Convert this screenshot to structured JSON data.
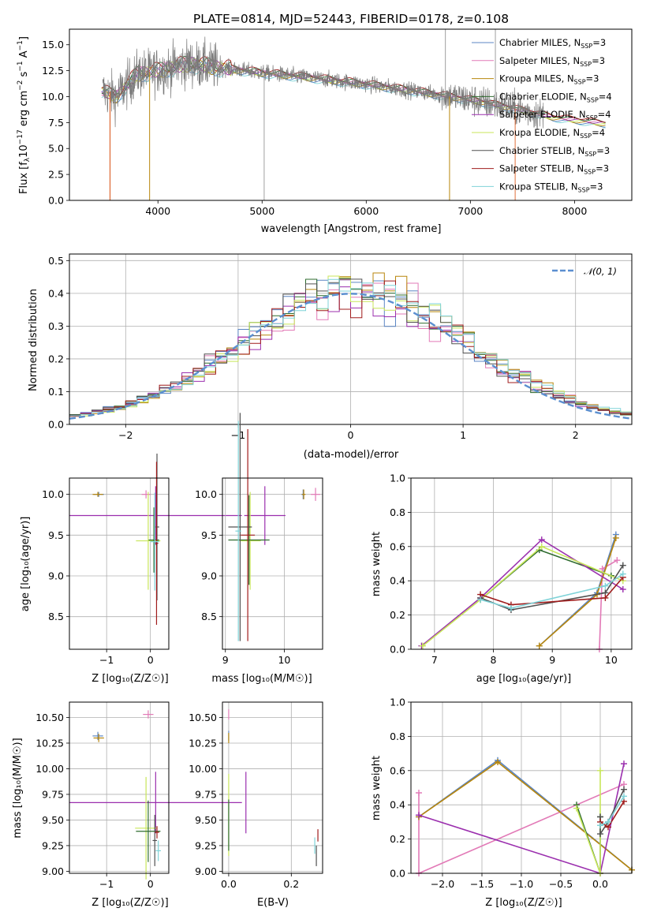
{
  "colors": [
    "#5b86c4",
    "#e27ab7",
    "#b8860b",
    "#2e6b2e",
    "#9b2fae",
    "#c8e65a",
    "#505050",
    "#a01c1c",
    "#7fd3d8"
  ],
  "chart_data": [
    {
      "id": "spectrum",
      "type": "line",
      "title": "PLATE=0814, MJD=52443, FIBERID=0178, z=0.108",
      "xlabel": "wavelength [Angstrom, rest frame]",
      "ylabel": "Flux [f_λ10^{-17} erg cm^{-2} s^{-1} A^{-1}]",
      "xlim": [
        3150,
        8550
      ],
      "ylim": [
        0,
        16.5
      ],
      "xticks": [
        "4000",
        "5000",
        "6000",
        "7000",
        "8000"
      ],
      "yticks": [
        "0.0",
        "2.5",
        "5.0",
        "7.5",
        "10.0",
        "12.5",
        "15.0"
      ],
      "grid": false,
      "legend_position": "top-right",
      "legend": [
        {
          "main": "Chabrier MILES, N",
          "sub": "SSP",
          "tail": "=3"
        },
        {
          "main": "Salpeter MILES, N",
          "sub": "SSP",
          "tail": "=3"
        },
        {
          "main": "Kroupa MILES, N",
          "sub": "SSP",
          "tail": "=3"
        },
        {
          "main": "Chabrier ELODIE, N",
          "sub": "SSP",
          "tail": "=4"
        },
        {
          "main": "Salpeter ELODIE, N",
          "sub": "SSP",
          "tail": "=4"
        },
        {
          "main": "Kroupa ELODIE, N",
          "sub": "SSP",
          "tail": "=4"
        },
        {
          "main": "Chabrier STELIB, N",
          "sub": "SSP",
          "tail": "=3"
        },
        {
          "main": "Salpeter STELIB, N",
          "sub": "SSP",
          "tail": "=3"
        },
        {
          "main": "Kroupa STELIB, N",
          "sub": "SSP",
          "tail": "=3"
        }
      ],
      "continuum": {
        "x": [
          3450,
          3600,
          3800,
          4000,
          4300,
          4600,
          5000,
          5500,
          6000,
          6500,
          7000,
          7400,
          7800,
          8300
        ],
        "y": [
          10.6,
          10.0,
          12.2,
          12.5,
          13.2,
          12.8,
          12.3,
          11.8,
          11.2,
          10.5,
          9.7,
          8.9,
          8.0,
          7.4
        ]
      },
      "spikes": [
        {
          "x": 3920,
          "y": 0,
          "color": "#b8860b"
        },
        {
          "x": 5020,
          "y": 0,
          "color": "#a0a0a0"
        },
        {
          "x": 6800,
          "y": 0,
          "color": "#b8860b"
        },
        {
          "x": 7430,
          "y": 0,
          "color": "#e06f3c"
        },
        {
          "x": 6760,
          "y": 16.5,
          "color": "#a0a0a0"
        },
        {
          "x": 7240,
          "y": 16.5,
          "color": "#a0a0a0"
        }
      ],
      "drop_edge": {
        "x": 3540,
        "y_top": 10.5,
        "color": "#e06f3c"
      }
    },
    {
      "id": "residuals",
      "type": "histogram",
      "xlabel": "(data-model)/error",
      "ylabel": "Normed distribution",
      "xlim": [
        -2.5,
        2.5
      ],
      "ylim": [
        0,
        0.52
      ],
      "xticks": [
        "−2",
        "−1",
        "0",
        "1",
        "2"
      ],
      "yticks": [
        "0.0",
        "0.1",
        "0.2",
        "0.3",
        "0.4",
        "0.5"
      ],
      "grid": true,
      "legend_position": "top-right",
      "gaussian_label": "𝒩(0, 1)",
      "gaussian_color": "#5b8fd0",
      "bin_width": 0.1
    },
    {
      "id": "age_vs_Z",
      "type": "errorbar",
      "xlabel": "Z [log₁₀(Z/Z☉)]",
      "ylabel": "age  [log₁₀(age/yr)]",
      "xlim": [
        -1.85,
        0.42
      ],
      "ylim": [
        8.1,
        10.2
      ],
      "xticks": [
        "−1",
        "0"
      ],
      "yticks": [
        "8.5",
        "9.0",
        "9.5",
        "10.0"
      ],
      "grid": true,
      "points": [
        {
          "x": -1.18,
          "y": 10.0,
          "xerr": 0.12,
          "yerr": 0.03,
          "c": 0
        },
        {
          "x": -1.2,
          "y": 10.0,
          "xerr": 0.12,
          "yerr": 0.03,
          "c": 2
        },
        {
          "x": -0.1,
          "y": 10.0,
          "xerr": 0.1,
          "yerr": 0.05,
          "c": 1
        },
        {
          "x": 0.12,
          "y": 9.74,
          "xerr": 1.97,
          "yerr": 0.36,
          "c": 4
        },
        {
          "x": -0.05,
          "y": 9.43,
          "xerr": 0.28,
          "yerr": 0.6,
          "c": 5
        },
        {
          "x": 0.08,
          "y": 9.44,
          "xerr": 0.12,
          "yerr": 0.4,
          "c": 3
        },
        {
          "x": 0.15,
          "y": 9.6,
          "xerr": 0.05,
          "yerr": 0.9,
          "c": 6
        },
        {
          "x": 0.14,
          "y": 9.4,
          "xerr": 0.04,
          "yerr": 1.0,
          "c": 7
        },
        {
          "x": 0.1,
          "y": 9.42,
          "xerr": 0.1,
          "yerr": 0.6,
          "c": 8
        }
      ]
    },
    {
      "id": "age_vs_mass",
      "type": "errorbar",
      "xlabel": "mass [log₁₀(M/M☉)]",
      "ylabel": "",
      "xlim": [
        8.95,
        10.65
      ],
      "ylim": [
        8.1,
        10.2
      ],
      "xticks": [
        "9",
        "10"
      ],
      "yticks": [
        "8.5",
        "9.0",
        "9.5",
        "10.0"
      ],
      "grid": true,
      "points": [
        {
          "x": 10.32,
          "y": 10.0,
          "xerr": 0.03,
          "yerr": 0.06,
          "c": 0
        },
        {
          "x": 10.33,
          "y": 10.0,
          "xerr": 0.03,
          "yerr": 0.06,
          "c": 2
        },
        {
          "x": 10.53,
          "y": 10.0,
          "xerr": 0.08,
          "yerr": 0.08,
          "c": 1
        },
        {
          "x": 9.67,
          "y": 9.74,
          "xerr": 0.35,
          "yerr": 0.36,
          "c": 4
        },
        {
          "x": 9.42,
          "y": 9.43,
          "xerr": 0.18,
          "yerr": 0.6,
          "c": 5
        },
        {
          "x": 9.4,
          "y": 9.44,
          "xerr": 0.35,
          "yerr": 0.55,
          "c": 3
        },
        {
          "x": 9.25,
          "y": 9.6,
          "xerr": 0.2,
          "yerr": 1.4,
          "c": 6
        },
        {
          "x": 9.38,
          "y": 9.5,
          "xerr": 0.12,
          "yerr": 1.3,
          "c": 7
        },
        {
          "x": 9.22,
          "y": 9.55,
          "xerr": 0.05,
          "yerr": 1.35,
          "c": 8
        }
      ]
    },
    {
      "id": "weight_vs_age",
      "type": "line",
      "xlabel": "age  [log₁₀(age/yr)]",
      "ylabel": "mass weight",
      "xlim": [
        6.6,
        10.35
      ],
      "ylim": [
        0,
        1.0
      ],
      "xticks": [
        "7",
        "8",
        "9",
        "10"
      ],
      "yticks": [
        "0.0",
        "0.2",
        "0.4",
        "0.6",
        "0.8",
        "1.0"
      ],
      "grid": true,
      "series": [
        {
          "c": 0,
          "x": [
            8.78,
            9.76,
            10.08
          ],
          "y": [
            0.02,
            0.33,
            0.67
          ]
        },
        {
          "c": 1,
          "x": [
            9.8,
            9.85,
            10.1
          ],
          "y": [
            0.0,
            0.47,
            0.52
          ]
        },
        {
          "c": 2,
          "x": [
            8.78,
            9.76,
            10.08
          ],
          "y": [
            0.02,
            0.32,
            0.65
          ]
        },
        {
          "c": 3,
          "x": [
            7.78,
            8.78,
            10.0
          ],
          "y": [
            0.29,
            0.58,
            0.43
          ]
        },
        {
          "c": 4,
          "x": [
            6.78,
            7.78,
            8.82,
            10.2
          ],
          "y": [
            0.02,
            0.3,
            0.64,
            0.35
          ]
        },
        {
          "c": 5,
          "x": [
            6.8,
            7.78,
            8.82,
            10.2
          ],
          "y": [
            0.02,
            0.29,
            0.6,
            0.4
          ]
        },
        {
          "c": 6,
          "x": [
            7.78,
            8.3,
            9.9,
            10.2
          ],
          "y": [
            0.3,
            0.23,
            0.33,
            0.49
          ]
        },
        {
          "c": 7,
          "x": [
            7.78,
            8.3,
            9.9,
            10.2
          ],
          "y": [
            0.32,
            0.26,
            0.3,
            0.42
          ]
        },
        {
          "c": 8,
          "x": [
            7.78,
            8.3,
            9.9,
            10.2
          ],
          "y": [
            0.29,
            0.24,
            0.37,
            0.44
          ]
        }
      ]
    },
    {
      "id": "mass_vs_Z",
      "type": "errorbar",
      "xlabel": "Z [log₁₀(Z/Z☉)]",
      "ylabel": "mass [log₁₀(M/M☉)]",
      "xlim": [
        -1.85,
        0.42
      ],
      "ylim": [
        8.98,
        10.65
      ],
      "xticks": [
        "−1",
        "0"
      ],
      "yticks": [
        "9.00",
        "9.25",
        "9.50",
        "9.75",
        "10.00",
        "10.25",
        "10.50"
      ],
      "grid": true,
      "points": [
        {
          "x": -1.2,
          "y": 10.32,
          "xerr": 0.12,
          "yerr": 0.04,
          "c": 0
        },
        {
          "x": -1.18,
          "y": 10.3,
          "xerr": 0.12,
          "yerr": 0.04,
          "c": 2
        },
        {
          "x": -0.05,
          "y": 10.53,
          "xerr": 0.12,
          "yerr": 0.04,
          "c": 1
        },
        {
          "x": 0.12,
          "y": 9.67,
          "xerr": 1.97,
          "yerr": 0.3,
          "c": 4
        },
        {
          "x": -0.1,
          "y": 9.42,
          "xerr": 0.25,
          "yerr": 0.5,
          "c": 5
        },
        {
          "x": -0.05,
          "y": 9.39,
          "xerr": 0.28,
          "yerr": 0.3,
          "c": 3
        },
        {
          "x": 0.1,
          "y": 9.3,
          "xerr": 0.05,
          "yerr": 0.25,
          "c": 6
        },
        {
          "x": 0.15,
          "y": 9.38,
          "xerr": 0.05,
          "yerr": 0.06,
          "c": 7
        },
        {
          "x": 0.18,
          "y": 9.2,
          "xerr": 0.06,
          "yerr": 0.1,
          "c": 8
        }
      ]
    },
    {
      "id": "mass_vs_ebv",
      "type": "errorbar",
      "xlabel": "E(B-V)",
      "ylabel": "",
      "xlim": [
        -0.02,
        0.3
      ],
      "ylim": [
        8.98,
        10.65
      ],
      "xticks": [
        "0.0",
        "0.2"
      ],
      "yticks": [
        "9.00",
        "9.25",
        "9.50",
        "9.75",
        "10.00",
        "10.25",
        "10.50"
      ],
      "grid": true,
      "points": [
        {
          "x": 0.0,
          "y": 10.32,
          "xerr": 0.0,
          "yerr": 0.05,
          "c": 0
        },
        {
          "x": 0.0,
          "y": 10.3,
          "xerr": 0.0,
          "yerr": 0.05,
          "c": 2
        },
        {
          "x": 0.0,
          "y": 10.53,
          "xerr": 0.0,
          "yerr": 0.05,
          "c": 1
        },
        {
          "x": 0.055,
          "y": 9.67,
          "xerr": 0.0,
          "yerr": 0.3,
          "c": 4
        },
        {
          "x": 0.0,
          "y": 9.55,
          "xerr": 0.0,
          "yerr": 0.4,
          "c": 5
        },
        {
          "x": 0.0,
          "y": 9.45,
          "xerr": 0.0,
          "yerr": 0.25,
          "c": 3
        },
        {
          "x": 0.28,
          "y": 9.15,
          "xerr": 0.0,
          "yerr": 0.1,
          "c": 6
        },
        {
          "x": 0.285,
          "y": 9.35,
          "xerr": 0.0,
          "yerr": 0.06,
          "c": 7
        },
        {
          "x": 0.275,
          "y": 9.25,
          "xerr": 0.0,
          "yerr": 0.08,
          "c": 8
        }
      ]
    },
    {
      "id": "weight_vs_Z",
      "type": "line",
      "xlabel": "Z [log₁₀(Z/Z☉)]",
      "ylabel": "mass weight",
      "xlim": [
        -2.4,
        0.4
      ],
      "ylim": [
        0,
        1.0
      ],
      "xticks": [
        "−2.0",
        "−1.5",
        "−1.0",
        "−0.5",
        "0.0"
      ],
      "yticks": [
        "0.0",
        "0.2",
        "0.4",
        "0.6",
        "0.8",
        "1.0"
      ],
      "grid": true,
      "series": [
        {
          "c": 0,
          "x": [
            -2.3,
            -1.3,
            0.4
          ],
          "y": [
            0.33,
            0.66,
            0.02
          ]
        },
        {
          "c": 1,
          "x": [
            -2.3,
            -2.3,
            0.3
          ],
          "y": [
            0.47,
            0.0,
            0.52
          ]
        },
        {
          "c": 2,
          "x": [
            -2.3,
            -1.3,
            0.4
          ],
          "y": [
            0.33,
            0.65,
            0.02
          ]
        },
        {
          "c": 3,
          "x": [
            -0.3,
            0.0,
            0.0
          ],
          "y": [
            0.4,
            0.0,
            0.33
          ]
        },
        {
          "c": 4,
          "x": [
            -2.3,
            0.0,
            0.3
          ],
          "y": [
            0.34,
            0.0,
            0.64
          ]
        },
        {
          "c": 5,
          "x": [
            -0.3,
            0.0,
            0.0
          ],
          "y": [
            0.38,
            0.0,
            0.6
          ]
        },
        {
          "c": 6,
          "x": [
            0.0,
            0.0,
            0.1,
            0.3
          ],
          "y": [
            0.33,
            0.23,
            0.3,
            0.49
          ]
        },
        {
          "c": 7,
          "x": [
            0.0,
            0.1,
            0.3
          ],
          "y": [
            0.3,
            0.27,
            0.42
          ]
        },
        {
          "c": 8,
          "x": [
            0.0,
            0.1,
            0.3
          ],
          "y": [
            0.28,
            0.3,
            0.45
          ]
        }
      ]
    }
  ]
}
